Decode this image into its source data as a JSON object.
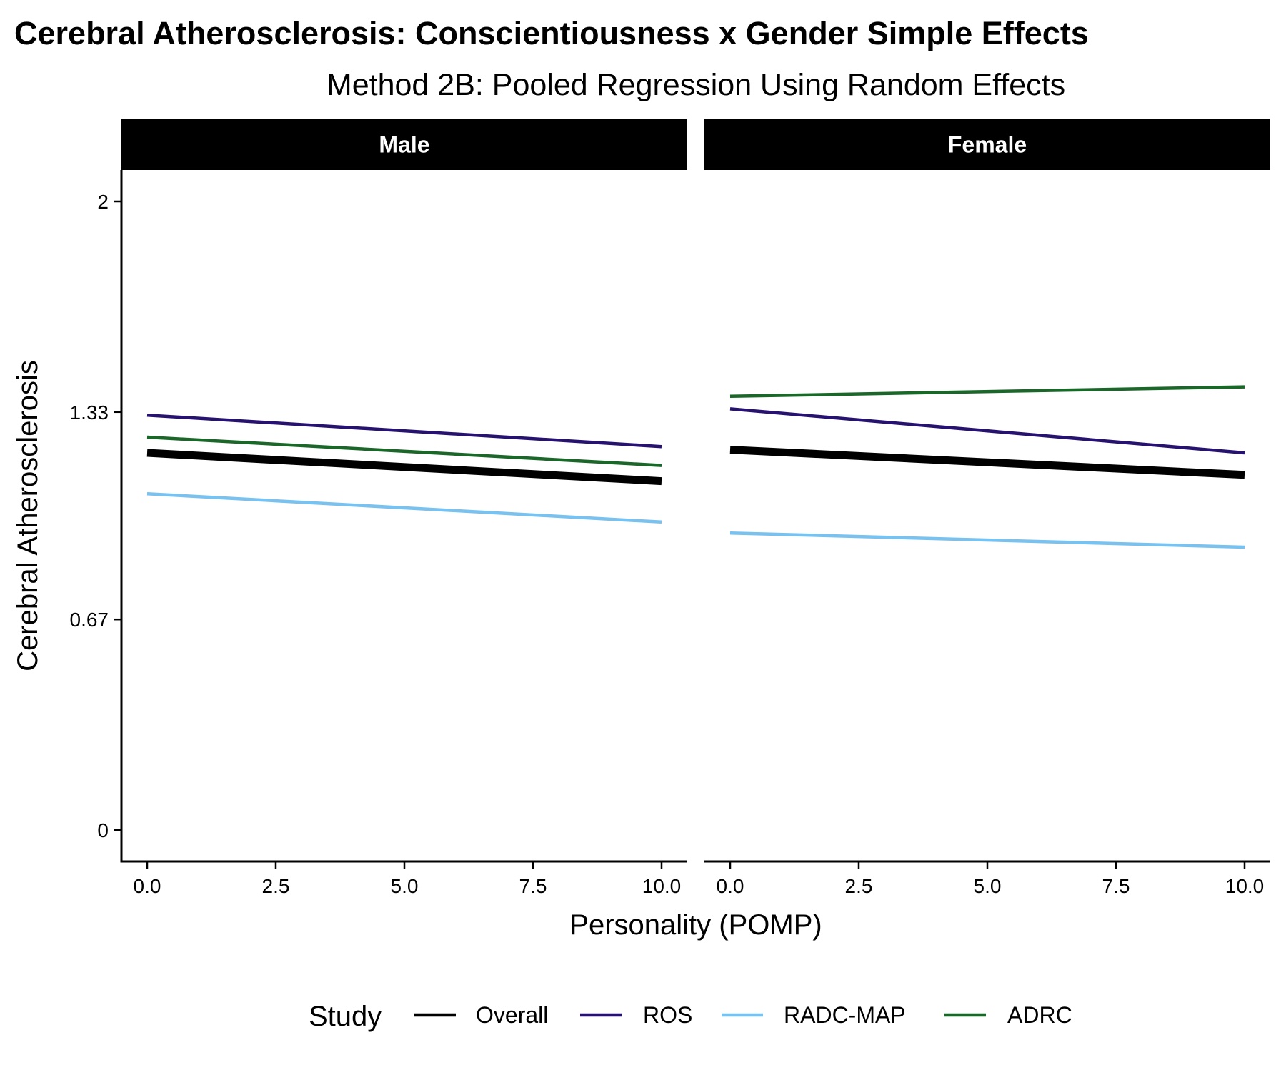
{
  "chart_data": {
    "type": "line",
    "title": "Cerebral Atherosclerosis: Conscientiousness x Gender Simple Effects",
    "subtitle": "Method 2B: Pooled Regression Using Random Effects",
    "xlabel": "Personality (POMP)",
    "ylabel": "Cerebral Atherosclerosis",
    "xlim": [
      -0.5,
      10.5
    ],
    "ylim": [
      -0.1,
      2.1
    ],
    "x_ticks": [
      0,
      2.5,
      5,
      7.5,
      10
    ],
    "x_tick_labels": [
      "0.0",
      "2.5",
      "5.0",
      "7.5",
      "10.0"
    ],
    "y_ticks": [
      0,
      0.67,
      1.33,
      2
    ],
    "y_tick_labels": [
      "0",
      "0.67",
      "1.33",
      "2"
    ],
    "grid": false,
    "legend": {
      "title": "Study",
      "position": "bottom",
      "entries": [
        "Overall",
        "ROS",
        "RADC-MAP",
        "ADRC"
      ]
    },
    "colors": {
      "Overall": "#000000",
      "ROS": "#27136f",
      "RADC-MAP": "#79c1ee",
      "ADRC": "#1b6629"
    },
    "panels": [
      {
        "label": "Male",
        "series": [
          {
            "name": "Overall",
            "x": [
              0,
              10
            ],
            "y": [
              1.2,
              1.11
            ]
          },
          {
            "name": "ROS",
            "x": [
              0,
              10
            ],
            "y": [
              1.32,
              1.22
            ]
          },
          {
            "name": "RADC-MAP",
            "x": [
              0,
              10
            ],
            "y": [
              1.07,
              0.98
            ]
          },
          {
            "name": "ADRC",
            "x": [
              0,
              10
            ],
            "y": [
              1.25,
              1.16
            ]
          }
        ]
      },
      {
        "label": "Female",
        "series": [
          {
            "name": "Overall",
            "x": [
              0,
              10
            ],
            "y": [
              1.21,
              1.13
            ]
          },
          {
            "name": "ROS",
            "x": [
              0,
              10
            ],
            "y": [
              1.34,
              1.2
            ]
          },
          {
            "name": "RADC-MAP",
            "x": [
              0,
              10
            ],
            "y": [
              0.945,
              0.9
            ]
          },
          {
            "name": "ADRC",
            "x": [
              0,
              10
            ],
            "y": [
              1.38,
              1.41
            ]
          }
        ]
      }
    ]
  }
}
